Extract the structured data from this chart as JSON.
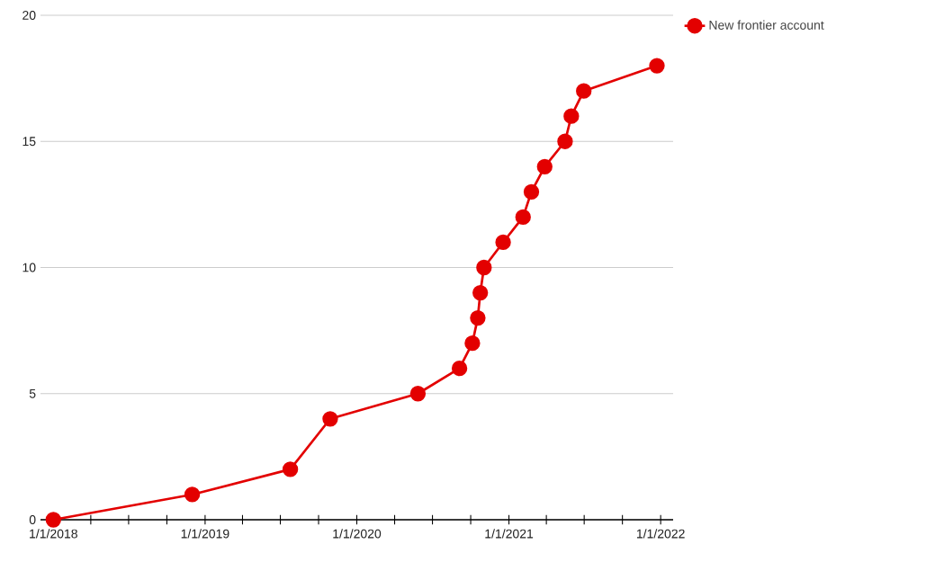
{
  "chart_data": {
    "type": "line",
    "x": [
      "2018-01-01",
      "2018-12-01",
      "2019-07-25",
      "2019-10-29",
      "2020-05-27",
      "2020-09-04",
      "2020-10-05",
      "2020-10-18",
      "2020-10-24",
      "2020-11-02",
      "2020-12-18",
      "2021-02-04",
      "2021-02-24",
      "2021-03-28",
      "2021-05-16",
      "2021-05-31",
      "2021-06-30",
      "2021-12-23"
    ],
    "series": [
      {
        "name": "New frontier account",
        "color": "#e30000",
        "values": [
          0,
          1,
          2,
          4,
          5,
          6,
          7,
          8,
          9,
          10,
          11,
          12,
          13,
          14,
          15,
          16,
          17,
          18
        ]
      }
    ],
    "xlim": [
      "2017-12-01",
      "2022-01-31"
    ],
    "xticks": [
      {
        "value": "2018-01-01",
        "label": "1/1/2018"
      },
      {
        "value": "2018-04-01",
        "label": null
      },
      {
        "value": "2018-07-01",
        "label": null
      },
      {
        "value": "2018-10-01",
        "label": null
      },
      {
        "value": "2019-01-01",
        "label": "1/1/2019"
      },
      {
        "value": "2019-04-01",
        "label": null
      },
      {
        "value": "2019-07-01",
        "label": null
      },
      {
        "value": "2019-10-01",
        "label": null
      },
      {
        "value": "2020-01-01",
        "label": "1/1/2020"
      },
      {
        "value": "2020-04-01",
        "label": null
      },
      {
        "value": "2020-07-01",
        "label": null
      },
      {
        "value": "2020-10-01",
        "label": null
      },
      {
        "value": "2021-01-01",
        "label": "1/1/2021"
      },
      {
        "value": "2021-04-01",
        "label": null
      },
      {
        "value": "2021-07-01",
        "label": null
      },
      {
        "value": "2021-10-01",
        "label": null
      },
      {
        "value": "2022-01-01",
        "label": "1/1/2022"
      }
    ],
    "ylim": [
      0,
      20
    ],
    "yticks": [
      0,
      5,
      10,
      15,
      20
    ],
    "grid": "y",
    "legend": "top right",
    "marker": "circle",
    "line_style": "solid"
  }
}
